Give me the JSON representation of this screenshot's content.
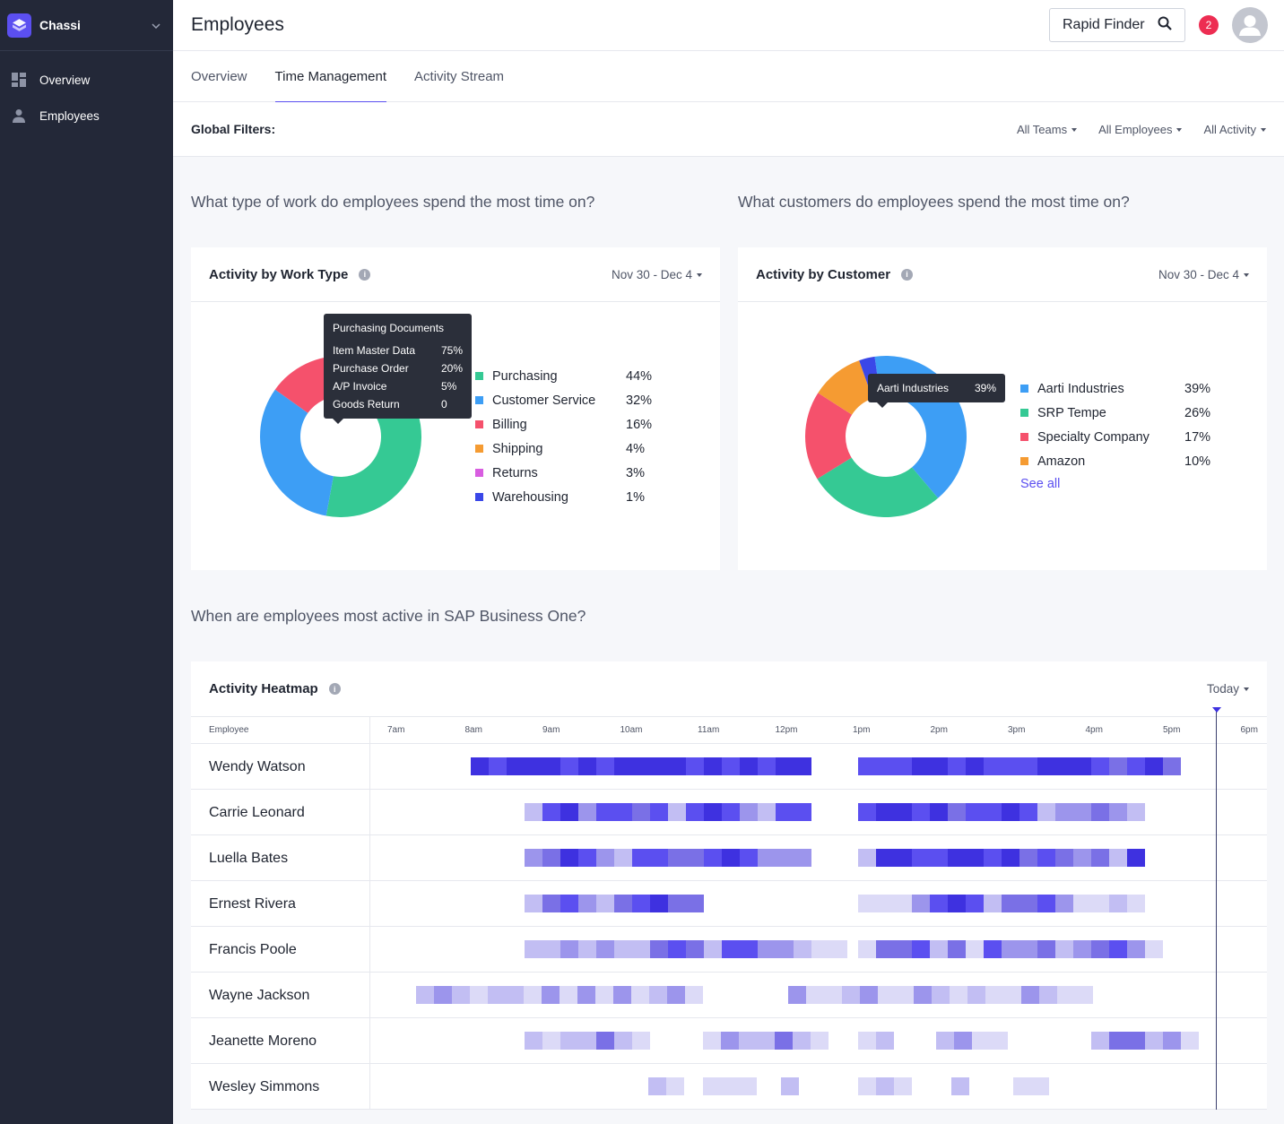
{
  "sidebar": {
    "brand": "Chassi",
    "items": [
      {
        "label": "Overview",
        "icon": "dashboard-icon"
      },
      {
        "label": "Employees",
        "icon": "person-icon"
      }
    ]
  },
  "header": {
    "title": "Employees",
    "finder_label": "Rapid Finder",
    "notification_count": "2"
  },
  "tabs": [
    {
      "label": "Overview",
      "active": false
    },
    {
      "label": "Time Management",
      "active": true
    },
    {
      "label": "Activity Stream",
      "active": false
    }
  ],
  "filters": {
    "label": "Global Filters:",
    "teams": "All Teams",
    "employees": "All Employees",
    "activity": "All Activity"
  },
  "sections": {
    "work_type_question": "What type of work do employees spend the most time on?",
    "customer_question": "What customers do employees spend the most time on?",
    "heatmap_question": "When are employees most active in SAP Business One?"
  },
  "work_type_card": {
    "title": "Activity by Work Type",
    "date_range": "Nov 30 - Dec 4",
    "tooltip": {
      "title": "Purchasing Documents",
      "rows": [
        {
          "label": "Item Master Data",
          "value": "75%"
        },
        {
          "label": "Purchase Order",
          "value": "20%"
        },
        {
          "label": "A/P Invoice",
          "value": "5%"
        },
        {
          "label": "Goods Return",
          "value": "0"
        }
      ]
    },
    "legend": [
      {
        "name": "Purchasing",
        "pct": "44%",
        "color": "#35c994"
      },
      {
        "name": "Customer Service",
        "pct": "32%",
        "color": "#3d9ef5"
      },
      {
        "name": "Billing",
        "pct": "16%",
        "color": "#f5516c"
      },
      {
        "name": "Shipping",
        "pct": "4%",
        "color": "#f59b32"
      },
      {
        "name": "Returns",
        "pct": "3%",
        "color": "#d85de0"
      },
      {
        "name": "Warehousing",
        "pct": "1%",
        "color": "#3a47e8"
      }
    ]
  },
  "customer_card": {
    "title": "Activity by Customer",
    "date_range": "Nov 30 - Dec 4",
    "tooltip": {
      "label": "Aarti Industries",
      "value": "39%"
    },
    "legend": [
      {
        "name": "Aarti Industries",
        "pct": "39%",
        "color": "#3d9ef5"
      },
      {
        "name": "SRP Tempe",
        "pct": "26%",
        "color": "#35c994"
      },
      {
        "name": "Specialty Company",
        "pct": "17%",
        "color": "#f5516c"
      },
      {
        "name": "Amazon",
        "pct": "10%",
        "color": "#f59b32"
      }
    ],
    "see_all": "See all"
  },
  "heatmap": {
    "title": "Activity Heatmap",
    "range": "Today",
    "column_label": "Employee",
    "hours": [
      "7am",
      "8am",
      "9am",
      "10am",
      "11am",
      "12pm",
      "1pm",
      "2pm",
      "3pm",
      "4pm",
      "5pm",
      "6pm"
    ],
    "colors": [
      "#dcdaf7",
      "#c2bef3",
      "#9c95ec",
      "#7a70e6",
      "#5b4ff0",
      "#3e31e0"
    ],
    "rows": [
      {
        "name": "Wendy Watson",
        "segments": [
          {
            "start": 8.0,
            "levels": [
              5,
              4,
              5,
              5,
              5,
              4,
              5,
              4,
              5,
              5,
              5,
              5,
              4,
              5,
              4,
              5,
              4,
              5,
              5
            ]
          },
          {
            "start": 13.0,
            "levels": [
              4,
              4,
              4,
              5,
              5,
              4,
              5,
              4,
              4,
              4,
              5,
              5,
              5,
              4,
              3,
              4,
              5,
              3
            ]
          }
        ]
      },
      {
        "name": "Carrie Leonard",
        "segments": [
          {
            "start": 8.7,
            "levels": [
              1,
              4,
              5,
              2,
              4,
              4,
              3,
              4,
              1,
              4,
              5,
              4,
              2,
              1,
              4,
              4
            ]
          },
          {
            "start": 13.0,
            "levels": [
              4,
              5,
              5,
              4,
              5,
              3,
              4,
              4,
              5,
              4,
              1,
              2,
              2,
              3,
              2,
              1
            ]
          }
        ]
      },
      {
        "name": "Luella Bates",
        "segments": [
          {
            "start": 8.7,
            "levels": [
              2,
              3,
              5,
              4,
              2,
              1,
              4,
              4,
              3,
              3,
              4,
              5,
              4,
              2,
              2,
              2
            ]
          },
          {
            "start": 13.0,
            "levels": [
              1,
              5,
              5,
              4,
              4,
              5,
              5,
              4,
              5,
              3,
              4,
              3,
              2,
              3,
              1,
              5
            ]
          }
        ]
      },
      {
        "name": "Ernest Rivera",
        "segments": [
          {
            "start": 8.7,
            "levels": [
              1,
              3,
              4,
              2,
              1,
              3,
              4,
              5,
              3,
              3
            ]
          },
          {
            "start": 13.0,
            "levels": [
              0,
              0,
              0,
              2,
              4,
              5,
              4,
              1,
              3,
              3,
              4,
              2,
              0,
              0,
              1,
              0
            ]
          }
        ]
      },
      {
        "name": "Francis Poole",
        "segments": [
          {
            "start": 8.7,
            "levels": [
              1,
              1,
              2,
              1,
              2,
              1,
              1,
              3,
              4,
              3,
              1,
              4,
              4,
              2,
              2,
              1,
              0,
              0
            ]
          },
          {
            "start": 13.0,
            "levels": [
              0,
              3,
              3,
              4,
              1,
              3,
              0,
              4,
              2,
              2,
              3,
              1,
              2,
              3,
              4,
              2,
              0
            ]
          }
        ]
      },
      {
        "name": "Wayne Jackson",
        "segments": [
          {
            "start": 7.3,
            "levels": [
              1,
              2,
              1,
              0,
              1,
              1,
              0,
              2,
              0,
              2,
              0,
              2,
              0,
              1,
              2,
              0
            ]
          },
          {
            "start": 12.1,
            "levels": [
              2,
              0,
              0,
              1,
              2,
              0,
              0,
              2,
              1,
              0,
              1,
              0,
              0,
              2,
              1,
              0,
              0
            ]
          }
        ]
      },
      {
        "name": "Jeanette Moreno",
        "segments": [
          {
            "start": 8.7,
            "levels": [
              1,
              0,
              1,
              1,
              3,
              1,
              0
            ]
          },
          {
            "start": 11.0,
            "levels": [
              0,
              2,
              1,
              1,
              3,
              1,
              0
            ]
          },
          {
            "start": 13.0,
            "levels": [
              0,
              1
            ]
          },
          {
            "start": 14.0,
            "levels": [
              1,
              2,
              0,
              0
            ]
          },
          {
            "start": 16.0,
            "levels": [
              1,
              3,
              3,
              1,
              2,
              0
            ]
          }
        ]
      },
      {
        "name": "Wesley Simmons",
        "segments": [
          {
            "start": 10.3,
            "levels": [
              1,
              0
            ]
          },
          {
            "start": 11.0,
            "levels": [
              0,
              0,
              0
            ]
          },
          {
            "start": 12.0,
            "levels": [
              1
            ]
          },
          {
            "start": 13.0,
            "levels": [
              0,
              1,
              0
            ]
          },
          {
            "start": 14.2,
            "levels": [
              1
            ]
          },
          {
            "start": 15.0,
            "levels": [
              0,
              0
            ]
          }
        ]
      }
    ]
  }
}
